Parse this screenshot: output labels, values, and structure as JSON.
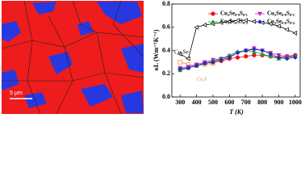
{
  "micrograph": {
    "scale_bar_label": "5 μm"
  },
  "chart_data": {
    "type": "line",
    "x_label": "T (K)",
    "y_label": "κL (Wm⁻¹K⁻¹)",
    "xlim": [
      250,
      1030
    ],
    "ylim": [
      0.0,
      0.8
    ],
    "xticks": [
      300,
      400,
      500,
      600,
      700,
      800,
      900,
      1000
    ],
    "yticks": [
      {
        "value": 0.0,
        "label": "0.0"
      },
      {
        "value": 0.2,
        "label": "0.2"
      },
      {
        "value": 0.4,
        "label": "0.4"
      },
      {
        "value": 0.6,
        "label": "0.6"
      },
      {
        "value": 0.8,
        "label": "0.8"
      }
    ],
    "series": [
      {
        "name": "Cu₂Se",
        "color": "#000000",
        "marker": "triangle-left-open",
        "x": [
          300,
          350,
          400,
          450,
          500,
          550,
          600,
          650,
          700,
          750,
          800,
          850,
          900,
          950,
          1000
        ],
        "values": [
          0.37,
          0.33,
          0.6,
          0.62,
          0.63,
          0.64,
          0.65,
          0.66,
          0.66,
          0.65,
          0.64,
          0.63,
          0.61,
          0.58,
          0.55
        ]
      },
      {
        "name": "Cu₂S",
        "color": "#f08030",
        "marker": "square-open",
        "x": [
          300,
          350,
          400,
          450,
          500
        ],
        "values": [
          0.3,
          0.28,
          0.27,
          0.28,
          0.29
        ]
      },
      {
        "name": "Cu₂Se₀.₉S₀.₁",
        "color": "#e8141c",
        "marker": "circle",
        "x": [
          300,
          350,
          400,
          450,
          500,
          550,
          600,
          650,
          700,
          750,
          800,
          850,
          900,
          950,
          1000
        ],
        "values": [
          0.24,
          0.25,
          0.27,
          0.29,
          0.3,
          0.31,
          0.33,
          0.34,
          0.35,
          0.36,
          0.36,
          0.35,
          0.34,
          0.35,
          0.36
        ]
      },
      {
        "name": "Cu₂Se₀.₈S₀.₂",
        "color": "#c020c0",
        "marker": "triangle-down",
        "x": [
          300,
          350,
          400,
          450,
          500,
          550,
          600,
          650,
          700,
          750,
          800,
          850,
          900,
          950,
          1000
        ],
        "values": [
          0.25,
          0.26,
          0.28,
          0.3,
          0.32,
          0.33,
          0.35,
          0.38,
          0.4,
          0.42,
          0.4,
          0.38,
          0.36,
          0.35,
          0.35
        ]
      },
      {
        "name": "Cu₂Se₀.₇S₀.₃",
        "color": "#20a030",
        "marker": "triangle-up",
        "x": [
          300,
          350,
          400,
          450,
          500,
          550,
          600,
          650,
          700,
          750,
          800,
          850,
          900,
          950,
          1000
        ],
        "values": [
          0.23,
          0.25,
          0.27,
          0.29,
          0.31,
          0.33,
          0.36,
          0.39,
          0.4,
          0.39,
          0.37,
          0.35,
          0.33,
          0.34,
          0.35
        ]
      },
      {
        "name": "Cu₂Se₀.₆S₀.₄",
        "color": "#2030c0",
        "marker": "diamond",
        "x": [
          300,
          350,
          400,
          450,
          500,
          550,
          600,
          650,
          700,
          750,
          800,
          850,
          900,
          950,
          1000
        ],
        "values": [
          0.24,
          0.25,
          0.27,
          0.29,
          0.3,
          0.32,
          0.34,
          0.38,
          0.4,
          0.41,
          0.4,
          0.37,
          0.34,
          0.33,
          0.34
        ]
      }
    ]
  }
}
